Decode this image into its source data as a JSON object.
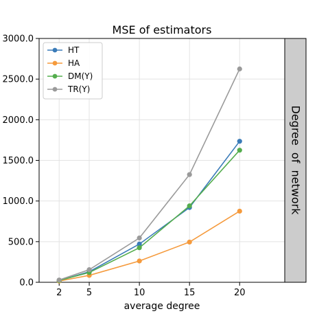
{
  "chart_data": {
    "type": "line",
    "title": "MSE of estimators",
    "xlabel": "average degree",
    "ylabel": "",
    "x": [
      2,
      5,
      10,
      15,
      20
    ],
    "xlim": [
      0,
      24.5
    ],
    "ylim": [
      0,
      3000
    ],
    "yticks": [
      0,
      500,
      1000,
      1500,
      2000,
      2500,
      3000
    ],
    "ytick_labels": [
      "0.0",
      "500.0",
      "1000.0",
      "1500.0",
      "2000.0",
      "2500.0",
      "3000.0"
    ],
    "xticks": [
      2,
      5,
      10,
      15,
      20
    ],
    "xtick_labels": [
      "2",
      "5",
      "10",
      "15",
      "20"
    ],
    "grid": true,
    "legend_position": "top-left",
    "facet_label": "Degree  of  network",
    "series": [
      {
        "name": "HT",
        "color": "#3a7bb8",
        "values": [
          20,
          130,
          470,
          920,
          1735
        ]
      },
      {
        "name": "HA",
        "color": "#f59a3c",
        "values": [
          15,
          85,
          262,
          495,
          875
        ]
      },
      {
        "name": "DM(Y)",
        "color": "#54ad4d",
        "values": [
          22,
          120,
          425,
          940,
          1625
        ]
      },
      {
        "name": "TR(Y)",
        "color": "#9a9a9a",
        "values": [
          28,
          155,
          545,
          1325,
          2625
        ]
      }
    ]
  }
}
